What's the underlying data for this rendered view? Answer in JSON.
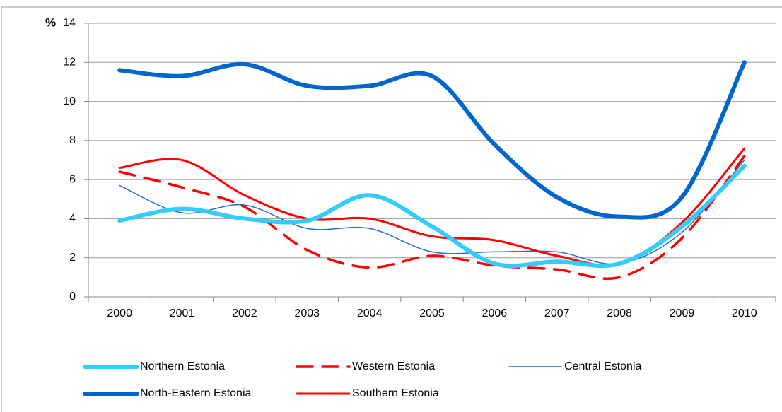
{
  "chart_data": {
    "type": "line",
    "y_label": "%",
    "categories": [
      "2000",
      "2001",
      "2002",
      "2003",
      "2004",
      "2005",
      "2006",
      "2007",
      "2008",
      "2009",
      "2010"
    ],
    "series": [
      {
        "name": "Northern Estonia",
        "color": "#33ccff",
        "width": 6,
        "dash": false,
        "values": [
          3.9,
          4.5,
          4.0,
          3.9,
          5.2,
          3.6,
          1.7,
          1.8,
          1.7,
          3.6,
          6.7
        ]
      },
      {
        "name": "Western Estonia",
        "color": "#ff0000",
        "width": 3.5,
        "dash": true,
        "values": [
          6.4,
          5.6,
          4.6,
          2.4,
          1.5,
          2.1,
          1.6,
          1.4,
          1.0,
          3.0,
          7.2
        ]
      },
      {
        "name": "Central Estonia",
        "color": "#1f6fc6",
        "width": 1.5,
        "dash": false,
        "values": [
          5.7,
          4.3,
          4.7,
          3.5,
          3.5,
          2.3,
          2.3,
          2.3,
          1.7,
          3.3,
          7.0
        ]
      },
      {
        "name": "North-Eastern Estonia",
        "color": "#0066cc",
        "width": 6,
        "dash": false,
        "values": [
          11.6,
          11.3,
          11.9,
          10.8,
          10.8,
          11.3,
          7.8,
          5.1,
          4.1,
          5.1,
          12.0
        ]
      },
      {
        "name": "Southern Estonia",
        "color": "#ff0000",
        "width": 3,
        "dash": false,
        "values": [
          6.6,
          7.0,
          5.2,
          4.0,
          4.0,
          3.1,
          2.9,
          2.1,
          1.7,
          3.8,
          7.6
        ]
      }
    ],
    "ylim": [
      0,
      14
    ],
    "yticks": [
      0,
      2,
      4,
      6,
      8,
      10,
      12,
      14
    ],
    "grid": true,
    "smooth": true,
    "legend": "bottom"
  }
}
